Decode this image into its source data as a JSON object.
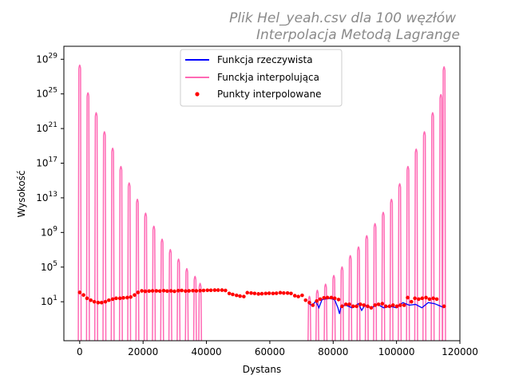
{
  "chart_data": {
    "type": "line",
    "title": [
      "Plik Hel_yeah.csv dla 100 węzłów",
      "Interpolacja Metodą Lagrange"
    ],
    "xlabel": "Dystans",
    "ylabel": "Wysokość",
    "xlim": [
      -5000,
      120000
    ],
    "ylim_log10": [
      -3.5,
      30.5
    ],
    "yscale": "log",
    "xticks": [
      0,
      20000,
      40000,
      60000,
      80000,
      100000,
      120000
    ],
    "xtick_labels": [
      "0",
      "20000",
      "40000",
      "60000",
      "80000",
      "100000",
      "120000"
    ],
    "yticks_exp": [
      1,
      5,
      9,
      13,
      17,
      21,
      25,
      29
    ],
    "ytick_base": "10",
    "legend": {
      "position": "upper-center",
      "entries": [
        {
          "label": "Funkcja rzeczywista",
          "color": "#0000ff",
          "style": "line"
        },
        {
          "label": "Funckja interpolująca",
          "color": "#ff69b4",
          "style": "line"
        },
        {
          "label": "Punkty interpolowane",
          "color": "#ff0000",
          "style": "dot"
        }
      ]
    },
    "series": [
      {
        "name": "Funkcja rzeczywista",
        "color": "#0000ff",
        "x": [
          72500,
          73500,
          74500,
          75500,
          76500,
          77500,
          78500,
          79500,
          80500,
          81500,
          82000,
          82500,
          84000,
          86000,
          88000,
          89000,
          90000,
          92000,
          94000,
          96000,
          98000,
          100000,
          102000,
          104000,
          106000,
          108000,
          110000,
          112000,
          114000,
          115000
        ],
        "y": [
          5,
          4,
          12,
          2,
          18,
          20,
          24,
          22,
          16,
          2,
          0.4,
          3,
          4,
          2,
          6,
          1,
          4,
          2,
          5,
          2,
          3,
          2,
          8,
          4,
          5,
          2,
          8,
          6,
          3,
          2
        ]
      },
      {
        "name": "Funckja interpolująca",
        "color": "#ff69b4",
        "peaks": [
          {
            "x": 0,
            "y_exp": 28.5
          },
          {
            "x": 2600,
            "y_exp": 25.3
          },
          {
            "x": 5200,
            "y_exp": 23.0
          },
          {
            "x": 7800,
            "y_exp": 20.8
          },
          {
            "x": 10400,
            "y_exp": 18.9
          },
          {
            "x": 13000,
            "y_exp": 16.8
          },
          {
            "x": 15600,
            "y_exp": 14.9
          },
          {
            "x": 18200,
            "y_exp": 13.0
          },
          {
            "x": 20800,
            "y_exp": 11.4
          },
          {
            "x": 23400,
            "y_exp": 9.9
          },
          {
            "x": 26000,
            "y_exp": 8.4
          },
          {
            "x": 28600,
            "y_exp": 7.2
          },
          {
            "x": 31200,
            "y_exp": 6.1
          },
          {
            "x": 33800,
            "y_exp": 5.0
          },
          {
            "x": 36400,
            "y_exp": 4.1
          },
          {
            "x": 38000,
            "y_exp": 3.3
          },
          {
            "x": 72500,
            "y_exp": 1.8
          },
          {
            "x": 75000,
            "y_exp": 2.5
          },
          {
            "x": 77600,
            "y_exp": 3.2
          },
          {
            "x": 80200,
            "y_exp": 4.2
          },
          {
            "x": 82800,
            "y_exp": 5.2
          },
          {
            "x": 85400,
            "y_exp": 6.5
          },
          {
            "x": 88000,
            "y_exp": 7.5
          },
          {
            "x": 90600,
            "y_exp": 8.8
          },
          {
            "x": 93200,
            "y_exp": 10.2
          },
          {
            "x": 95800,
            "y_exp": 11.5
          },
          {
            "x": 98400,
            "y_exp": 13.0
          },
          {
            "x": 101000,
            "y_exp": 14.8
          },
          {
            "x": 103600,
            "y_exp": 16.8
          },
          {
            "x": 106200,
            "y_exp": 18.8
          },
          {
            "x": 108800,
            "y_exp": 20.8
          },
          {
            "x": 111400,
            "y_exp": 23.0
          },
          {
            "x": 114000,
            "y_exp": 25.1
          },
          {
            "x": 115000,
            "y_exp": 28.3
          }
        ]
      },
      {
        "name": "Punkty interpolowane",
        "color": "#ff0000",
        "x": [
          0,
          1200,
          2300,
          3500,
          4600,
          5800,
          6900,
          8100,
          9200,
          10400,
          11500,
          12700,
          13800,
          15000,
          16100,
          17300,
          18400,
          19600,
          20700,
          21900,
          23000,
          24200,
          25300,
          26500,
          27600,
          28800,
          29900,
          31100,
          32200,
          33400,
          34500,
          35700,
          36800,
          38000,
          39100,
          40300,
          41400,
          42600,
          43700,
          44900,
          46000,
          47200,
          48300,
          49500,
          50600,
          51800,
          52900,
          54100,
          55200,
          56400,
          57500,
          58700,
          59800,
          61000,
          62100,
          63300,
          64400,
          65600,
          66700,
          67900,
          69000,
          70200,
          71300,
          72500,
          73600,
          74800,
          75900,
          77100,
          78200,
          79400,
          80500,
          81700,
          82800,
          84000,
          85100,
          86300,
          87400,
          88600,
          89700,
          90900,
          92000,
          93200,
          94300,
          95500,
          96600,
          97800,
          98900,
          100100,
          101200,
          102400,
          103500,
          104700,
          105800,
          107000,
          108100,
          109300,
          110400,
          111600,
          112700,
          115000
        ],
        "y": [
          120,
          60,
          25,
          15,
          10,
          8,
          8,
          10,
          15,
          20,
          25,
          25,
          28,
          30,
          35,
          60,
          120,
          180,
          160,
          170,
          180,
          180,
          170,
          190,
          170,
          180,
          160,
          190,
          200,
          170,
          180,
          190,
          180,
          190,
          200,
          210,
          210,
          220,
          220,
          220,
          200,
          90,
          70,
          55,
          45,
          40,
          110,
          100,
          90,
          80,
          85,
          90,
          95,
          90,
          95,
          110,
          100,
          100,
          90,
          50,
          40,
          55,
          15,
          8,
          4,
          12,
          20,
          28,
          30,
          30,
          25,
          18,
          3,
          5,
          5,
          3,
          3,
          5,
          4,
          3,
          2,
          4,
          5,
          6,
          3,
          3,
          4,
          3,
          4,
          4,
          30,
          10,
          25,
          20,
          25,
          30,
          20,
          25,
          20,
          3
        ]
      }
    ]
  }
}
